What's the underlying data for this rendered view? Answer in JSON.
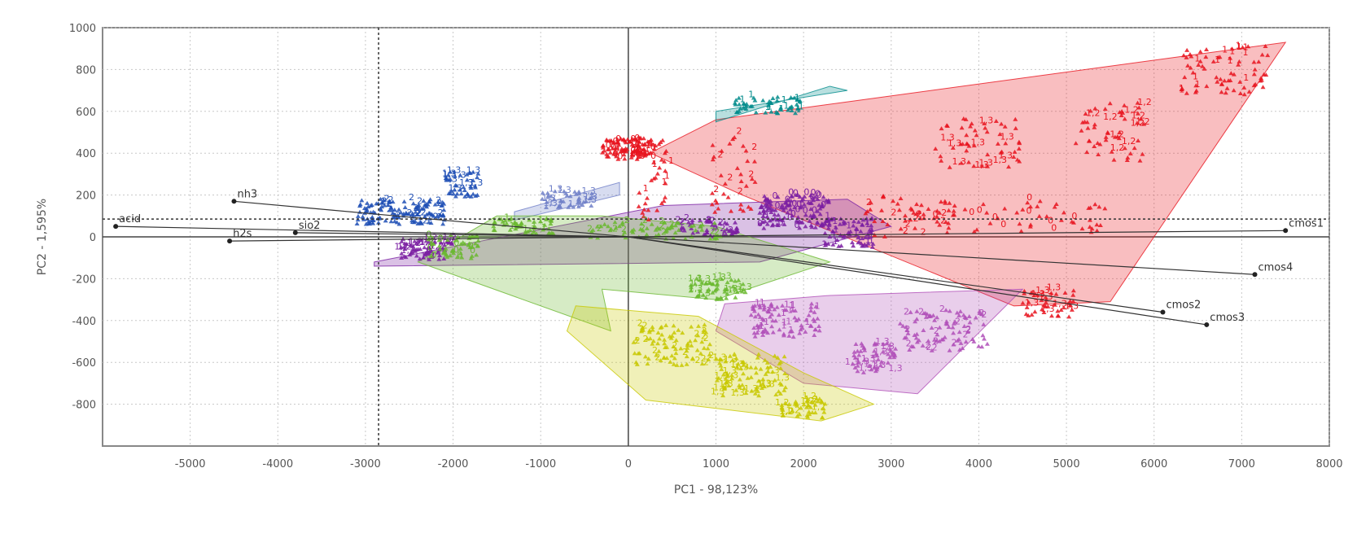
{
  "chart_data": {
    "type": "scatter",
    "xlabel": "PC1 - 98,123%",
    "ylabel": "PC2 - 1,595%",
    "xlim": [
      -6000,
      8000
    ],
    "ylim": [
      -1000,
      1000
    ],
    "x_ticks": [
      -5000,
      -4000,
      -3000,
      -2000,
      -1000,
      0,
      1000,
      2000,
      3000,
      4000,
      5000,
      6000,
      7000,
      8000
    ],
    "y_ticks": [
      -800,
      -600,
      -400,
      -200,
      0,
      200,
      400,
      600,
      800,
      1000
    ],
    "grid": true,
    "reference_lines": {
      "x": -2850,
      "y": 85
    },
    "loadings": [
      {
        "label": "nh3",
        "x": -4500,
        "y": 170
      },
      {
        "label": "acid",
        "x": -5850,
        "y": 50
      },
      {
        "label": "h2s",
        "x": -4550,
        "y": -20
      },
      {
        "label": "sio2",
        "x": -3800,
        "y": 20
      },
      {
        "label": "cmos1",
        "x": 7500,
        "y": 30
      },
      {
        "label": "cmos4",
        "x": 7150,
        "y": -180
      },
      {
        "label": "cmos2",
        "x": 6100,
        "y": -360
      },
      {
        "label": "cmos3",
        "x": 6600,
        "y": -420
      }
    ],
    "point_labels": [
      "0",
      "1",
      "2",
      "1,3",
      "1,2"
    ],
    "groups": [
      {
        "color": "#e8141e",
        "hull": [
          [
            1.3,
            0.2
          ],
          [
            0.1,
            0.43
          ],
          [
            0.1,
            0.37
          ],
          [
            1.0,
            0.56
          ],
          [
            7.5,
            0.93
          ],
          [
            5.5,
            -0.31
          ],
          [
            4.4,
            -0.33
          ]
        ],
        "clusters": [
          [
            0.0,
            0.42,
            0.6,
            0.05,
            120
          ],
          [
            0.3,
            0.28,
            0.4,
            0.2,
            40
          ],
          [
            1.2,
            0.3,
            0.5,
            0.2,
            40
          ],
          [
            4.0,
            0.45,
            1.0,
            0.12,
            60
          ],
          [
            5.5,
            0.5,
            0.8,
            0.14,
            60
          ],
          [
            4.5,
            0.1,
            2.0,
            0.08,
            60
          ],
          [
            6.8,
            0.8,
            1.0,
            0.12,
            80
          ],
          [
            3.2,
            0.1,
            1.0,
            0.1,
            50
          ],
          [
            4.8,
            -0.32,
            0.6,
            0.07,
            50
          ]
        ]
      },
      {
        "color": "#008b8b",
        "hull": [
          [
            1.0,
            0.55
          ],
          [
            2.3,
            0.72
          ],
          [
            2.5,
            0.7
          ],
          [
            1.0,
            0.6
          ]
        ],
        "clusters": [
          [
            1.6,
            0.63,
            0.8,
            0.04,
            60
          ]
        ]
      },
      {
        "color": "#1f4fb5",
        "hull": [],
        "clusters": [
          [
            -2.6,
            0.12,
            1.0,
            0.06,
            150
          ],
          [
            -1.9,
            0.25,
            0.4,
            0.06,
            50
          ]
        ]
      },
      {
        "color": "#7080c8",
        "hull": [
          [
            -1.3,
            0.12
          ],
          [
            -0.1,
            0.26
          ],
          [
            -0.1,
            0.2
          ],
          [
            -1.3,
            0.08
          ]
        ],
        "clusters": [
          [
            -0.7,
            0.18,
            0.6,
            0.04,
            50
          ]
        ]
      },
      {
        "color": "#7b1fa2",
        "hull": [
          [
            -2.9,
            -0.12
          ],
          [
            0.4,
            0.15
          ],
          [
            2.5,
            0.18
          ],
          [
            3.0,
            0.05
          ],
          [
            1.5,
            -0.12
          ],
          [
            -2.9,
            -0.14
          ]
        ],
        "clusters": [
          [
            -2.3,
            -0.06,
            0.6,
            0.05,
            80
          ],
          [
            1.9,
            0.12,
            0.8,
            0.08,
            150
          ],
          [
            2.5,
            0.02,
            0.6,
            0.07,
            80
          ],
          [
            0.9,
            0.04,
            0.7,
            0.04,
            60
          ]
        ]
      },
      {
        "color": "#6ab82f",
        "hull": [
          [
            -2.4,
            -0.12
          ],
          [
            -1.5,
            0.1
          ],
          [
            -0.3,
            0.1
          ],
          [
            1.0,
            0.05
          ],
          [
            2.3,
            -0.12
          ],
          [
            1.0,
            -0.3
          ],
          [
            -0.3,
            -0.25
          ],
          [
            -0.2,
            -0.45
          ]
        ],
        "clusters": [
          [
            -2.0,
            -0.05,
            0.6,
            0.06,
            60
          ],
          [
            -1.2,
            0.05,
            0.7,
            0.04,
            60
          ],
          [
            0.3,
            0.03,
            1.5,
            0.04,
            80
          ],
          [
            1.0,
            -0.25,
            0.7,
            0.05,
            60
          ]
        ]
      },
      {
        "color": "#b04fb8",
        "hull": [
          [
            1.1,
            -0.32
          ],
          [
            2.3,
            -0.28
          ],
          [
            4.5,
            -0.25
          ],
          [
            3.3,
            -0.75
          ],
          [
            2.0,
            -0.7
          ],
          [
            1.0,
            -0.45
          ]
        ],
        "clusters": [
          [
            1.8,
            -0.4,
            0.8,
            0.08,
            100
          ],
          [
            3.6,
            -0.45,
            1.0,
            0.1,
            100
          ],
          [
            2.8,
            -0.58,
            0.5,
            0.07,
            60
          ]
        ]
      },
      {
        "color": "#c8c800",
        "hull": [
          [
            -0.6,
            -0.33
          ],
          [
            0.8,
            -0.38
          ],
          [
            2.0,
            -0.65
          ],
          [
            2.8,
            -0.8
          ],
          [
            2.2,
            -0.88
          ],
          [
            0.2,
            -0.78
          ],
          [
            -0.7,
            -0.45
          ]
        ],
        "clusters": [
          [
            0.5,
            -0.52,
            0.9,
            0.1,
            100
          ],
          [
            1.4,
            -0.66,
            0.8,
            0.1,
            100
          ],
          [
            2.0,
            -0.82,
            0.5,
            0.05,
            50
          ]
        ]
      }
    ]
  }
}
